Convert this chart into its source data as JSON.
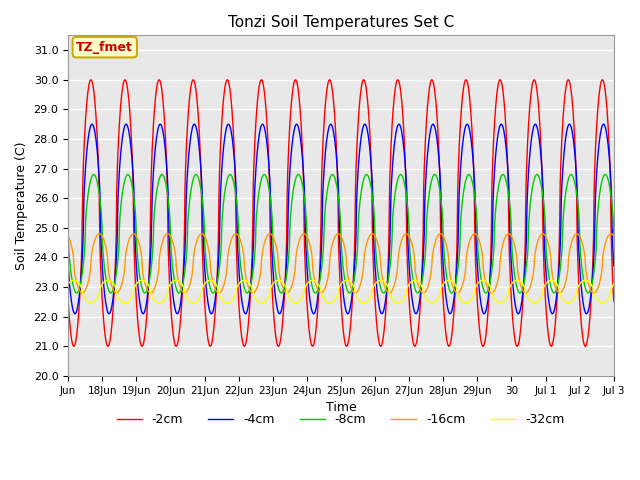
{
  "title": "Tonzi Soil Temperatures Set C",
  "xlabel": "Time",
  "ylabel": "Soil Temperature (C)",
  "ylim": [
    20.0,
    31.5
  ],
  "yticks": [
    20.0,
    21.0,
    22.0,
    23.0,
    24.0,
    25.0,
    26.0,
    27.0,
    28.0,
    29.0,
    30.0,
    31.0
  ],
  "ytick_labels": [
    "20.0",
    "21.0",
    "22.0",
    "23.0",
    "24.0",
    "25.0",
    "26.0",
    "27.0",
    "28.0",
    "29.0",
    "30.0",
    "31.0"
  ],
  "bg_color": "#e8e8e8",
  "plot_bg_color": "#e8e8e8",
  "annotation_text": "TZ_fmet",
  "annotation_box_color": "#ffffcc",
  "annotation_border_color": "#ccaa00",
  "series": [
    {
      "label": "-2cm",
      "color": "#ff0000",
      "amplitude": 4.5,
      "phase_hrs": 2.0,
      "mean": 25.5
    },
    {
      "label": "-4cm",
      "color": "#0000ff",
      "amplitude": 3.2,
      "phase_hrs": 2.8,
      "mean": 25.3
    },
    {
      "label": "-8cm",
      "color": "#00cc00",
      "amplitude": 2.0,
      "phase_hrs": 4.0,
      "mean": 24.8
    },
    {
      "label": "-16cm",
      "color": "#ff9900",
      "amplitude": 1.0,
      "phase_hrs": 8.0,
      "mean": 23.8
    },
    {
      "label": "-32cm",
      "color": "#ffff00",
      "amplitude": 0.38,
      "phase_hrs": 14.0,
      "mean": 22.85
    }
  ],
  "xtick_labels": [
    "Jun\n18Jun",
    "19Jun",
    "20Jun",
    "21Jun",
    "22Jun",
    "23Jun",
    "24Jun",
    "25Jun",
    "26Jun",
    "27Jun",
    "28Jun",
    "29Jun",
    "30",
    "Jul 1",
    "Jul 2",
    "Jul 3"
  ],
  "n_points": 1000
}
